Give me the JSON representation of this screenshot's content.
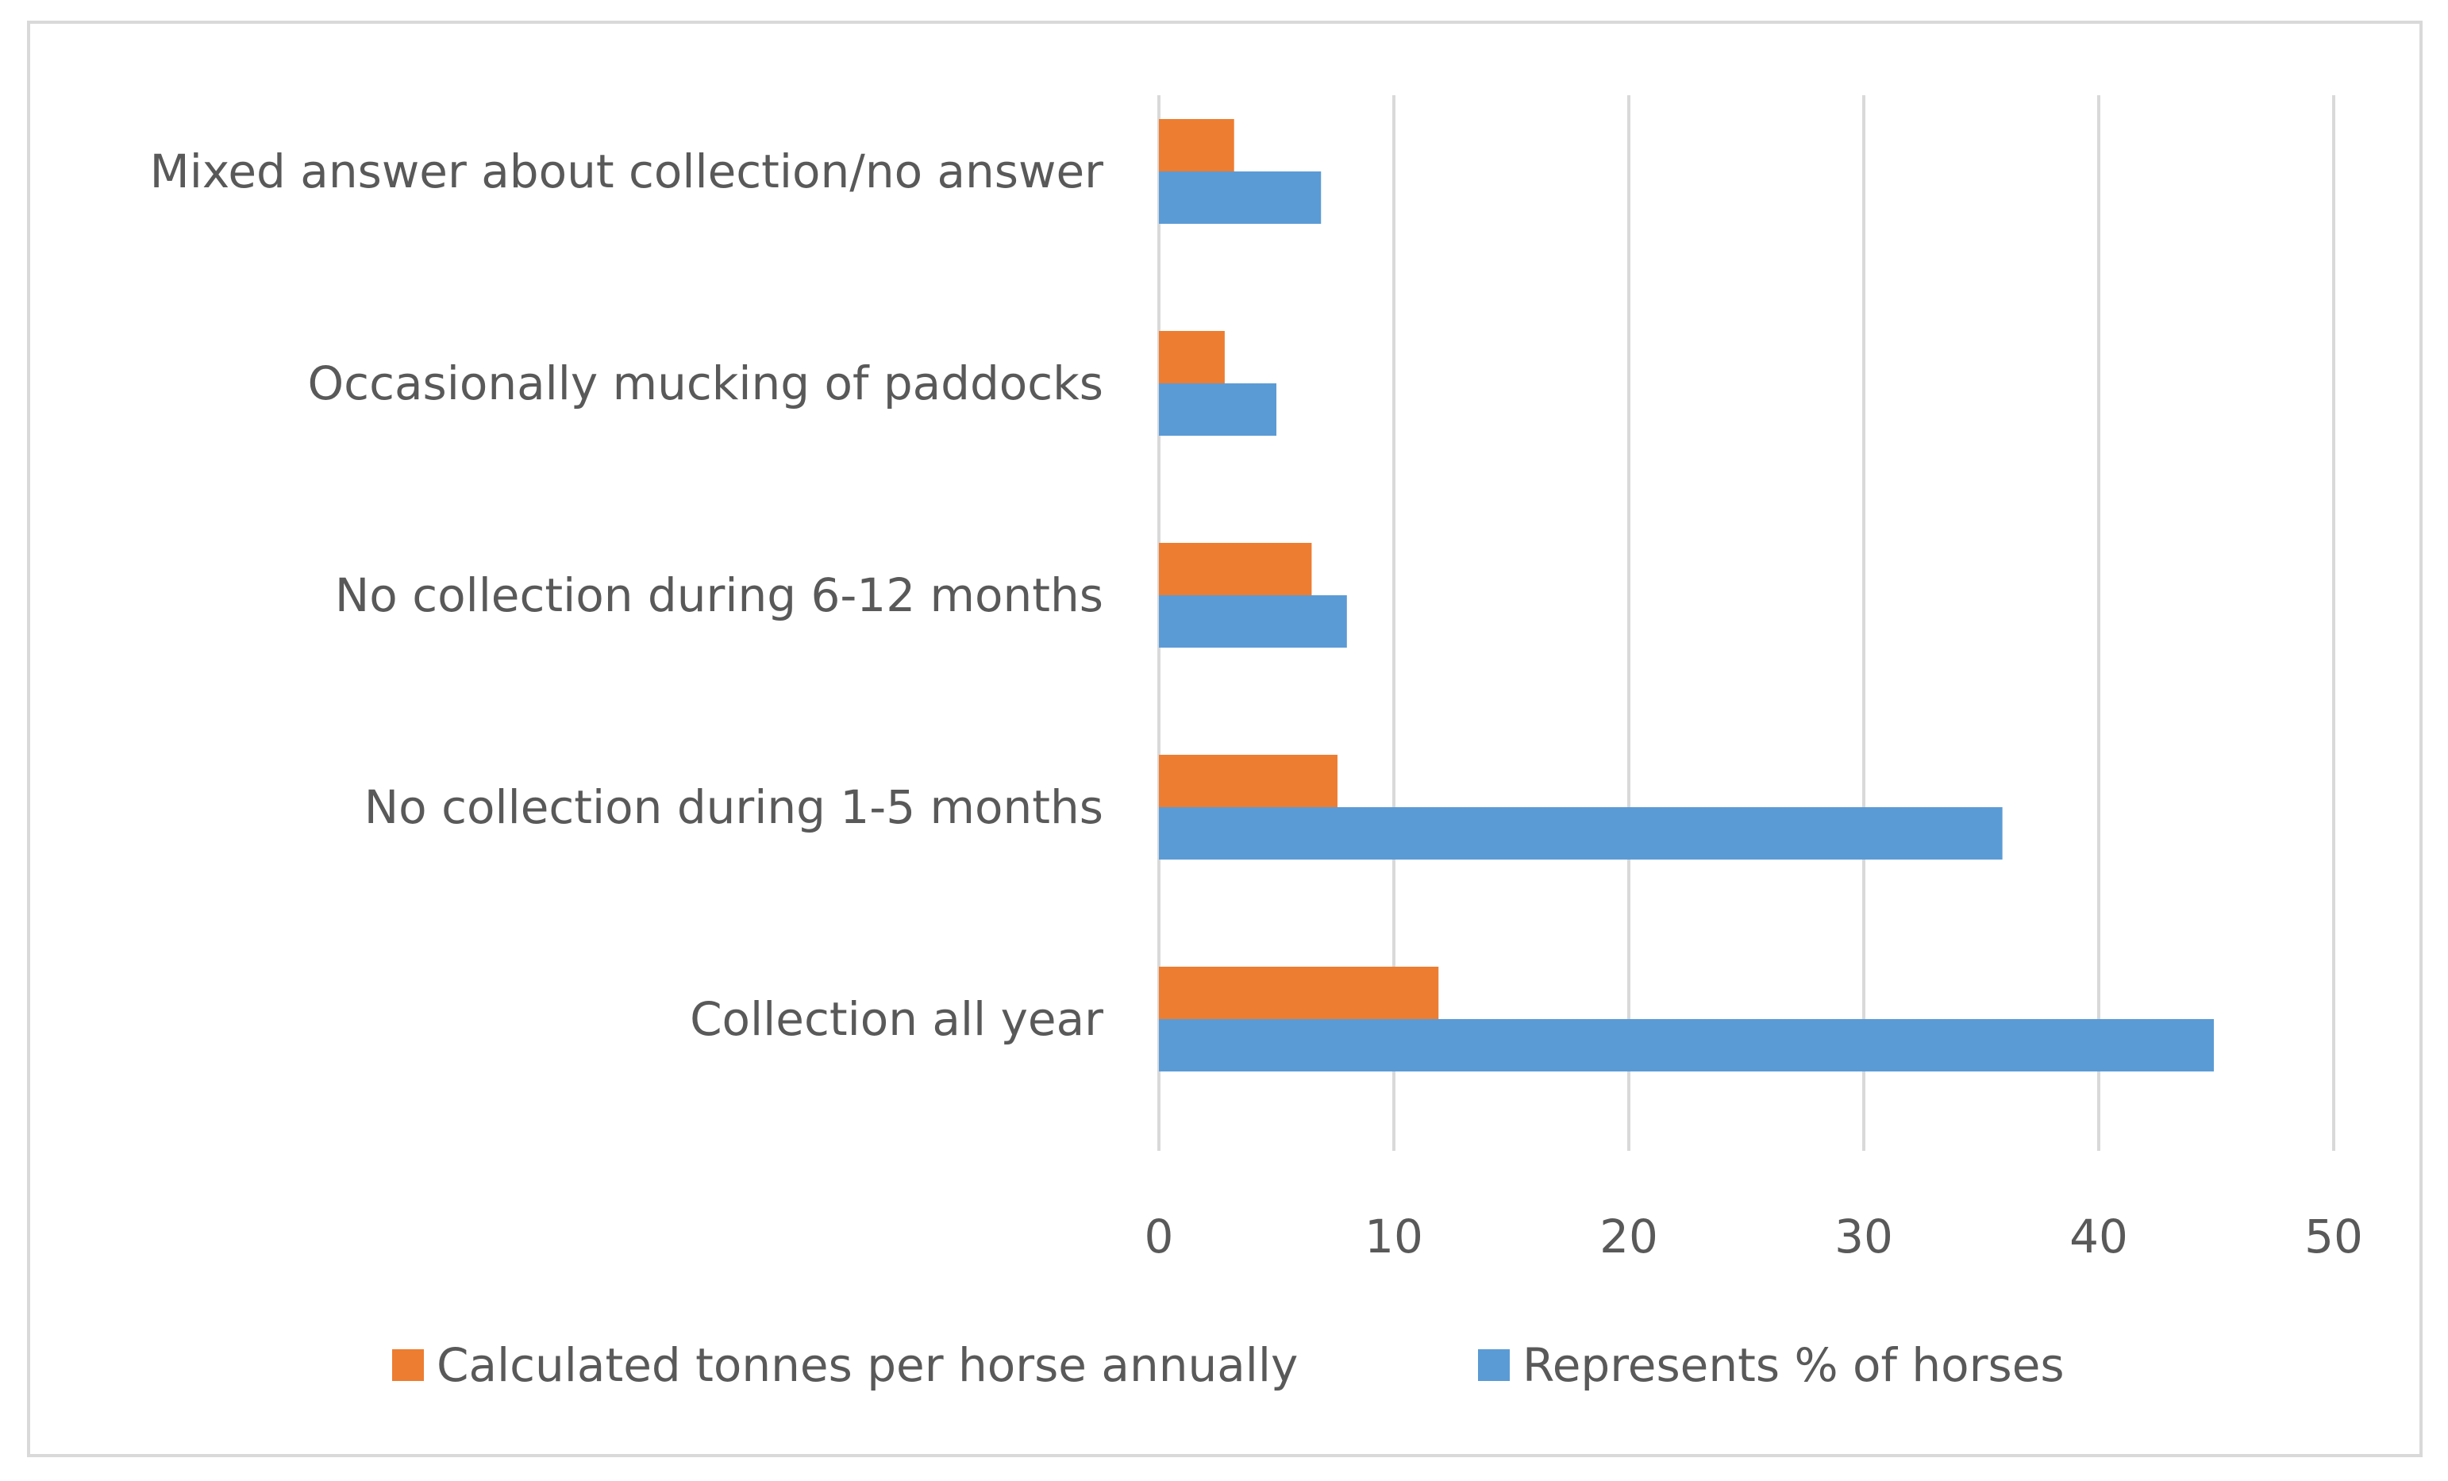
{
  "chart_data": {
    "type": "bar",
    "orientation": "horizontal",
    "title": "",
    "xlabel": "",
    "ylabel": "",
    "xlim": [
      0,
      50
    ],
    "ticks": [
      "0",
      "10",
      "20",
      "30",
      "40",
      "50"
    ],
    "tick_values": [
      0,
      10,
      20,
      30,
      40,
      50
    ],
    "grid": true,
    "legend_position": "bottom",
    "categories": [
      "Mixed answer about collection/no answer",
      "Occasionally mucking of paddocks",
      "No collection during 6-12 months",
      "No collection during 1-5 months",
      "Collection all year"
    ],
    "series": [
      {
        "name": "Calculated tonnes per horse annually",
        "color": "#ed7d31",
        "values": [
          3.2,
          2.8,
          6.5,
          7.6,
          11.9
        ]
      },
      {
        "name": "Represents % of horses",
        "color": "#5b9bd5",
        "values": [
          6.9,
          5.0,
          8.0,
          35.9,
          44.9
        ]
      }
    ],
    "gridline_color": "#d9d9d9"
  }
}
